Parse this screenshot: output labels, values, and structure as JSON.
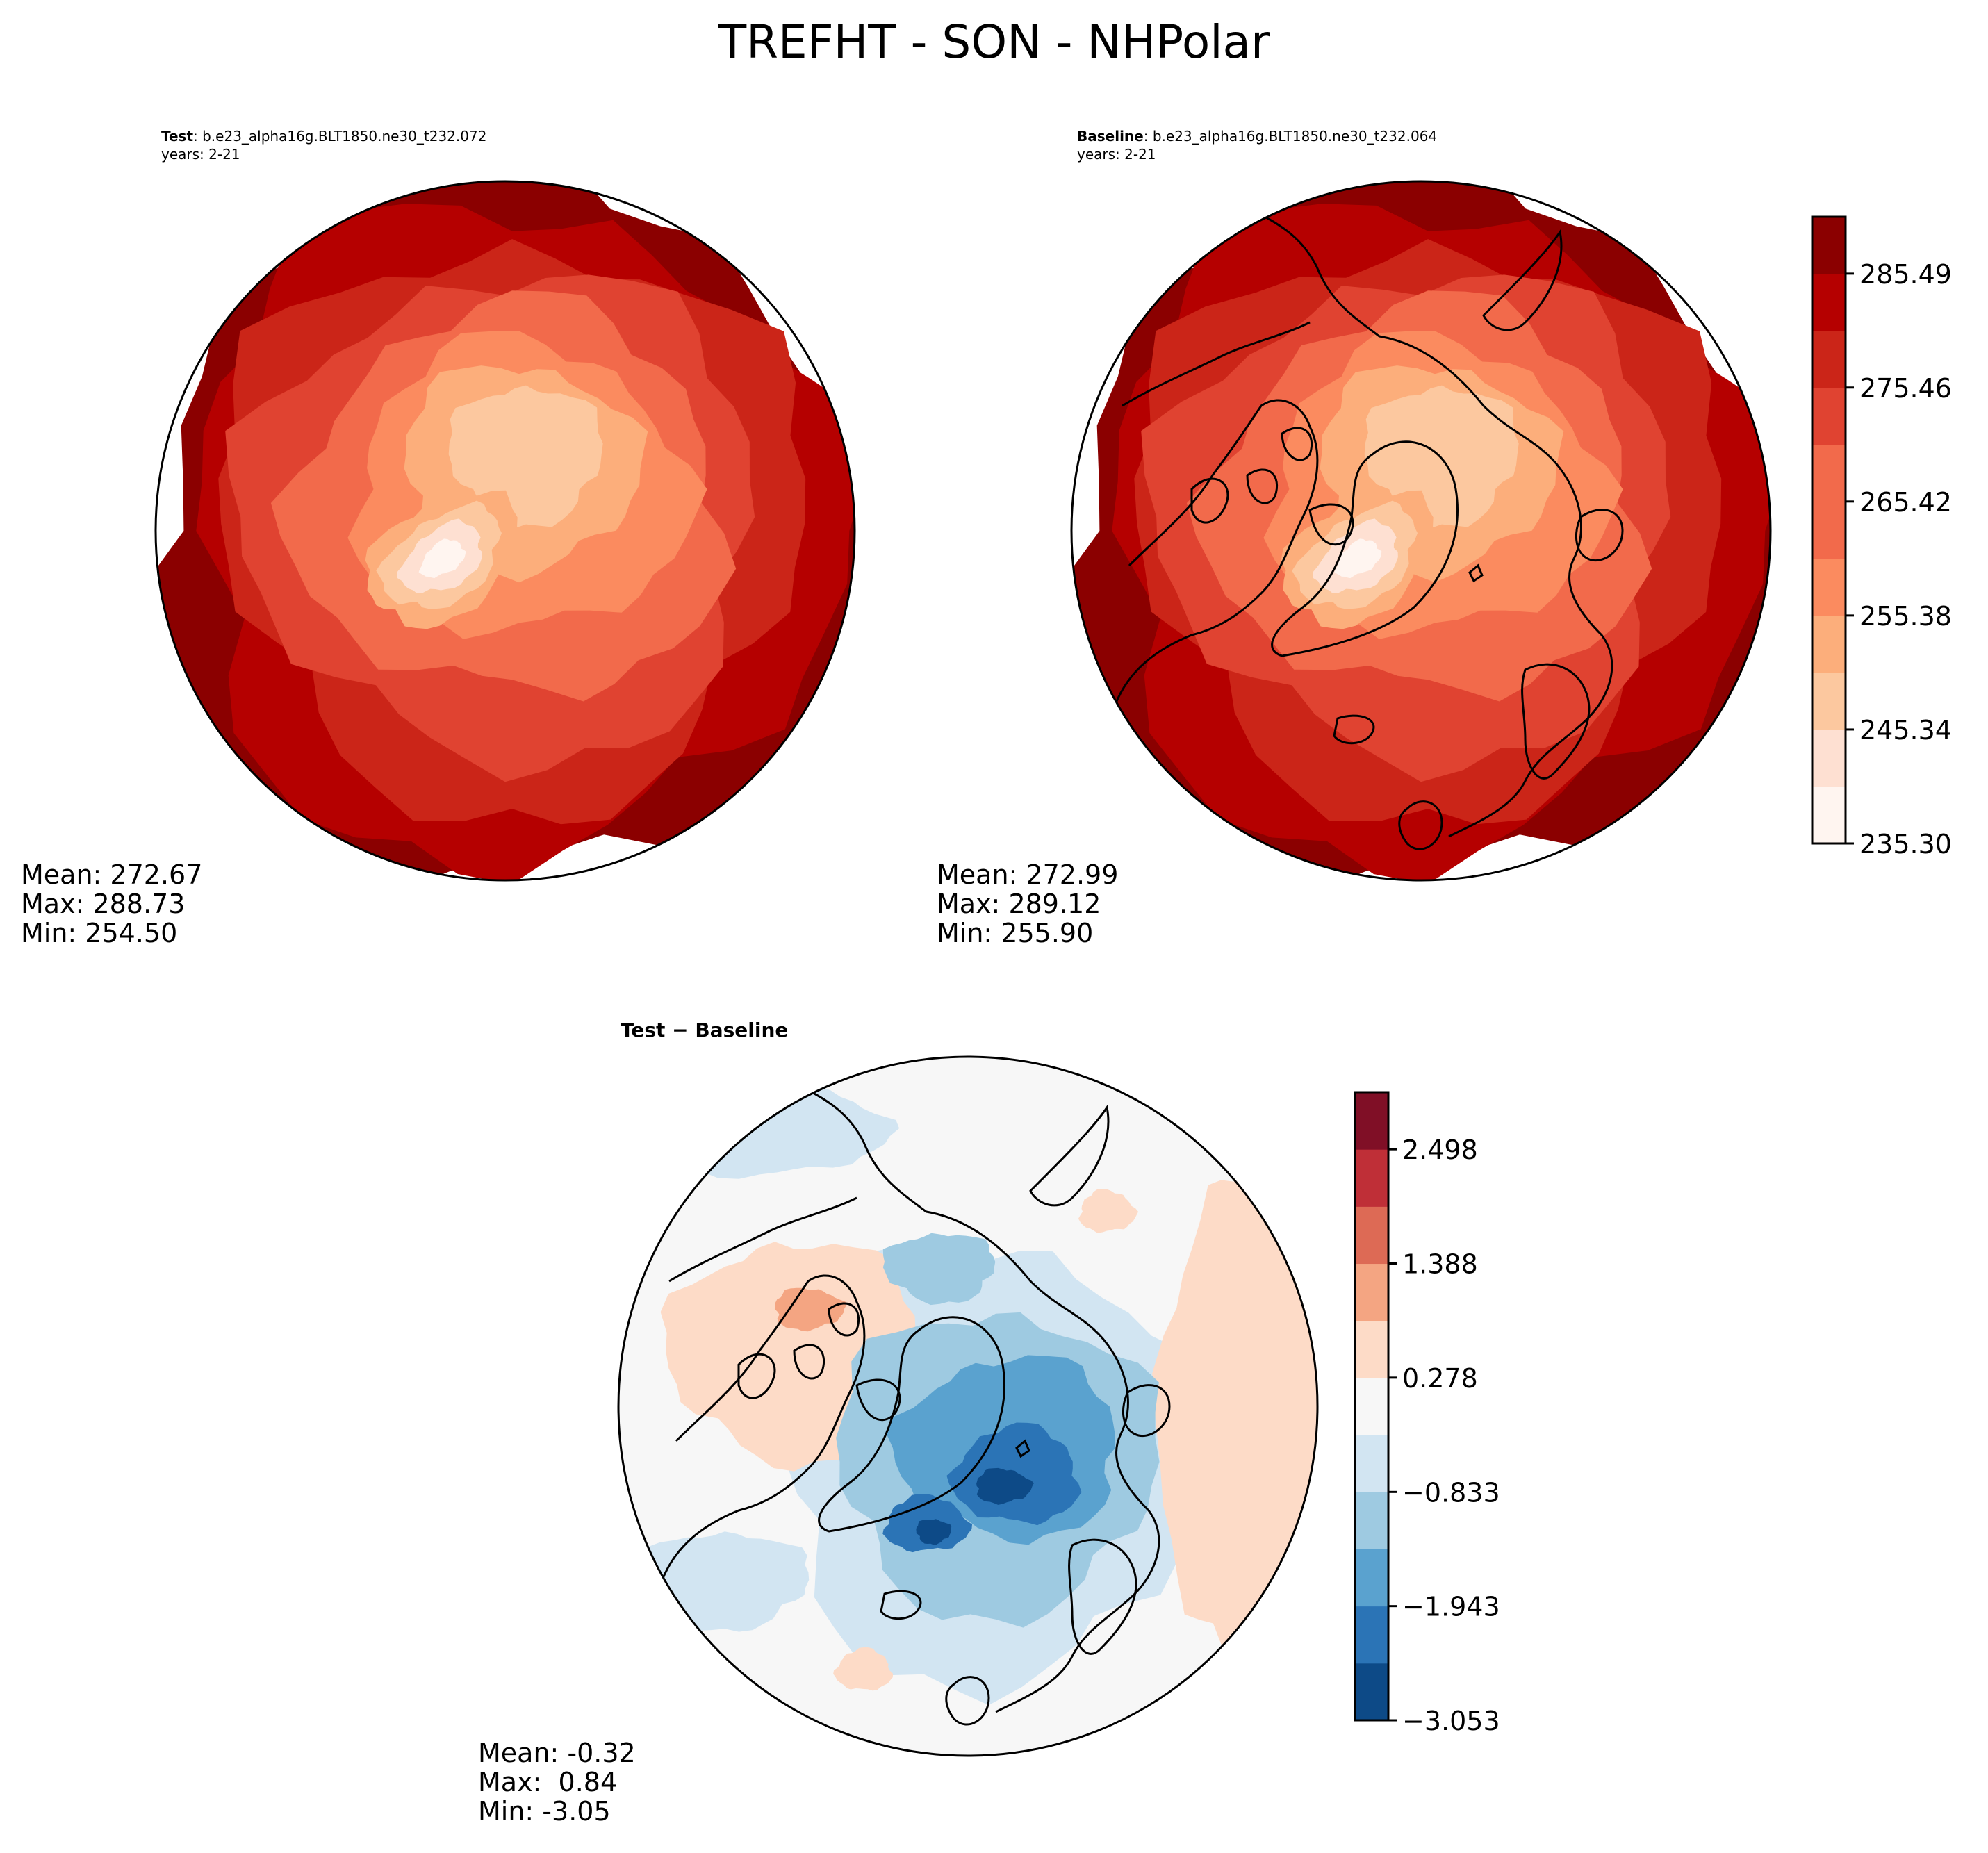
{
  "title": "TREFHT - SON - NHPolar",
  "colors": {
    "reds": [
      "#fff5f0",
      "#fee0d2",
      "#fcc89f",
      "#fcae7b",
      "#fb8b5f",
      "#f26a4b",
      "#e04331",
      "#cb2518",
      "#b50000",
      "#8b0000"
    ],
    "rdbu": [
      "#0d4a87",
      "#2b74b6",
      "#5aa2cf",
      "#9ecae1",
      "#d2e5f2",
      "#f7f7f7",
      "#fddbc7",
      "#f4a582",
      "#dd6a55",
      "#bf2f37",
      "#800f26"
    ]
  },
  "panels": {
    "test": {
      "label_bold": "Test",
      "label_case": ": b.e23_alpha16g.BLT1850.ne30_t232.072",
      "years": "years: 2-21",
      "mean": "Mean: 272.67",
      "max": "Max: 288.73",
      "min": "Min: 254.50"
    },
    "baseline": {
      "label_bold": "Baseline",
      "label_case": ": b.e23_alpha16g.BLT1850.ne30_t232.064",
      "years": "years: 2-21",
      "mean": "Mean: 272.99",
      "max": "Max: 289.12",
      "min": "Min: 255.90"
    },
    "diff": {
      "label": "Test − Baseline",
      "mean": "Mean: -0.32",
      "max": "Max:  0.84",
      "min": "Min: -3.05"
    }
  },
  "chart_data": [
    {
      "type": "heatmap",
      "name": "Test",
      "projection": "north polar stereographic",
      "stats": {
        "mean": 272.67,
        "max": 288.73,
        "min": 254.5
      },
      "colorbar": {
        "min": 235.3,
        "max": 290.5,
        "levels": 11,
        "ticks": [
          235.3,
          245.34,
          255.38,
          265.42,
          275.46,
          285.49
        ]
      }
    },
    {
      "type": "heatmap",
      "name": "Baseline",
      "projection": "north polar stereographic",
      "stats": {
        "mean": 272.99,
        "max": 289.12,
        "min": 255.9
      },
      "colorbar": {
        "min": 235.3,
        "max": 290.5,
        "levels": 11,
        "ticks": [
          235.3,
          245.34,
          255.38,
          265.42,
          275.46,
          285.49
        ]
      }
    },
    {
      "type": "heatmap",
      "name": "Test − Baseline",
      "projection": "north polar stereographic",
      "stats": {
        "mean": -0.32,
        "max": 0.84,
        "min": -3.05
      },
      "colorbar": {
        "min": -3.053,
        "max": 3.053,
        "levels": 11,
        "ticks": [
          "−3.053",
          "−1.943",
          "−0.833",
          "0.278",
          "1.388",
          "2.498"
        ]
      }
    }
  ]
}
